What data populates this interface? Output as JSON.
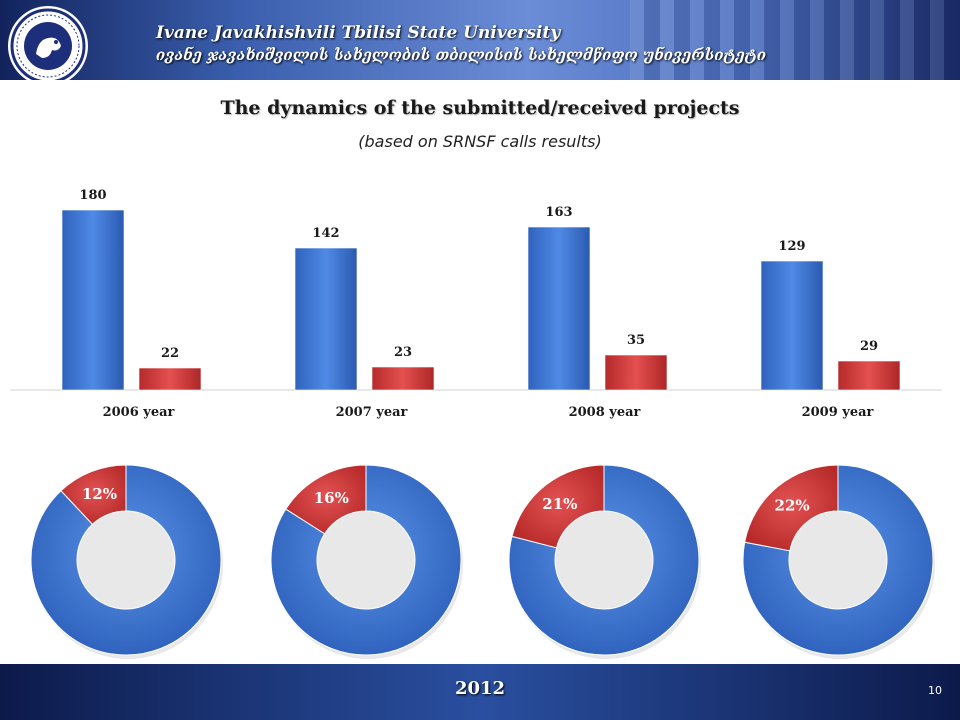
{
  "header": {
    "university_en": "Ivane Javakhishvili Tbilisi State University",
    "university_ka": "ივანე ჯავახიშვილის სახელობის თბილისის სახელმწიფო უნივერსიტეტი"
  },
  "slide": {
    "title": "The dynamics of the submitted/received projects",
    "subtitle": "(based on SRNSF calls results)"
  },
  "chart_data": [
    {
      "type": "bar",
      "categories": [
        "2006 year",
        "2007 year",
        "2008 year",
        "2009 year"
      ],
      "series": [
        {
          "values": [
            180,
            142,
            163,
            129
          ],
          "color": "#3d78d8"
        },
        {
          "values": [
            22,
            23,
            35,
            29
          ],
          "color": "#d53c3c"
        }
      ],
      "ylim": [
        0,
        190
      ],
      "grid": false,
      "legend": "none"
    },
    {
      "type": "pie",
      "style": "donut",
      "charts": [
        {
          "labels": [
            "12%"
          ],
          "values": [
            12,
            88
          ]
        },
        {
          "labels": [
            "16%"
          ],
          "values": [
            16,
            84
          ]
        },
        {
          "labels": [
            "21%"
          ],
          "values": [
            21,
            79
          ]
        },
        {
          "labels": [
            "22%"
          ],
          "values": [
            22,
            78
          ]
        }
      ],
      "colors": [
        "#d53c3c",
        "#3d78d8"
      ]
    }
  ],
  "footer": {
    "year": "2012",
    "page_number": "10"
  }
}
